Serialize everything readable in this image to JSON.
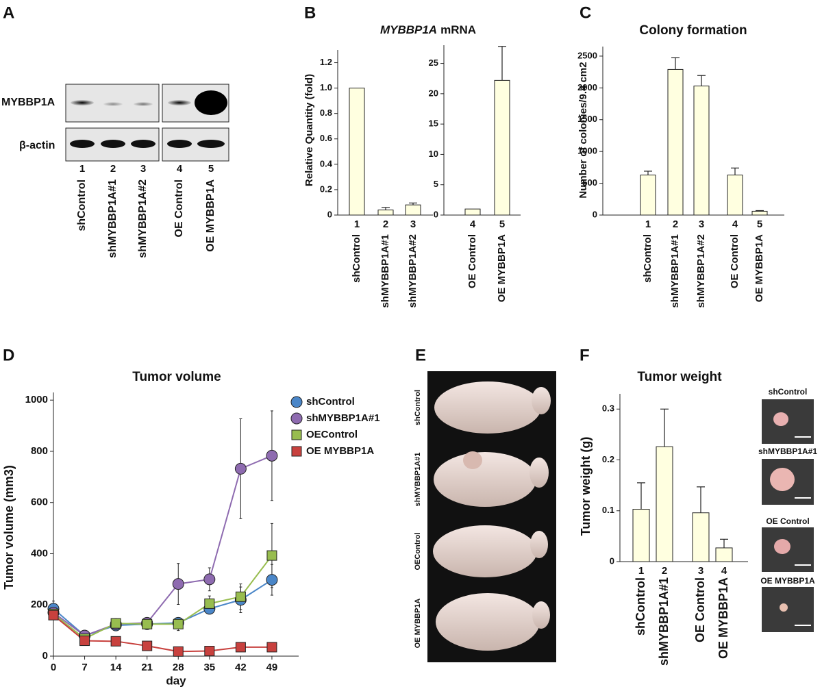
{
  "panel_labels": [
    "A",
    "B",
    "C",
    "D",
    "E",
    "F"
  ],
  "blot": {
    "rows": [
      "MYBBP1A",
      "β-actin"
    ],
    "lanes": [
      "1",
      "2",
      "3",
      "4",
      "5"
    ],
    "samples": [
      "shControl",
      "shMYBBP1A#1",
      "shMYBBP1A#2",
      "OE Control",
      "OE MYBBP1A"
    ]
  },
  "chart_data": [
    {
      "type": "bar",
      "title_italic": "MYBBP1A",
      "title": "mRNA",
      "y_label": "Relative Quantity (fold)",
      "categories": [
        "1",
        "2",
        "3"
      ],
      "sample_labels": [
        "shControl",
        "shMYBBP1A#1",
        "shMYBBP1A#2"
      ],
      "values": [
        1.0,
        0.04,
        0.08
      ],
      "errors": [
        0,
        0.02,
        0.015
      ],
      "color": "#ffffe0",
      "ylim": [
        0,
        1.3
      ],
      "yticks": [
        0,
        0.2,
        0.4,
        0.6,
        0.8,
        {
          "value": 1,
          "label": "1.0"
        },
        1.2
      ]
    },
    {
      "type": "bar",
      "categories": [
        "4",
        "5"
      ],
      "sample_labels": [
        "OE Control",
        "OE MYBBP1A"
      ],
      "values": [
        1,
        22.2
      ],
      "errors": [
        0,
        5.6
      ],
      "color": "#ffffe0",
      "ylim": [
        0,
        28
      ],
      "yticks": [
        0,
        5,
        10,
        15,
        20,
        25
      ]
    },
    {
      "type": "bar",
      "title": "Colony formation",
      "y_label": "Number of colonies/9.4 cm2",
      "categories": [
        "1",
        "2",
        "3",
        "4",
        "5"
      ],
      "sample_labels": [
        "shControl",
        "shMYBBP1A#1",
        "shMYBBP1A#2",
        "OE Control",
        "OE MYBBP1A"
      ],
      "values": [
        630,
        2290,
        2030,
        630,
        60
      ],
      "errors": [
        60,
        185,
        165,
        110,
        10
      ],
      "color": "#ffffe0",
      "ylim": [
        0,
        2650
      ],
      "yticks": [
        0,
        500,
        1000,
        1500,
        2000,
        2500
      ]
    },
    {
      "type": "line",
      "title": "Tumor volume",
      "x_label": "day",
      "y_label": "Tumor volume (mm3)",
      "x": [
        0,
        7,
        14,
        21,
        28,
        35,
        42,
        49
      ],
      "xlim": [
        0,
        55
      ],
      "xticks": [
        0,
        7,
        14,
        21,
        28,
        35,
        42,
        49
      ],
      "ylim": [
        0,
        1030
      ],
      "yticks": [
        0,
        200,
        400,
        600,
        800,
        1000
      ],
      "series": [
        {
          "name": "shControl",
          "color": "#4a86c8",
          "marker": "circle",
          "values": [
            185,
            80,
            120,
            125,
            130,
            185,
            220,
            298
          ],
          "errors": [
            30,
            10,
            15,
            15,
            20,
            20,
            50,
            60
          ]
        },
        {
          "name": "shMYBBP1A#1",
          "color": "#8e6bb0",
          "marker": "circle",
          "values": [
            170,
            80,
            125,
            130,
            282,
            300,
            732,
            783
          ],
          "errors": [
            25,
            10,
            15,
            15,
            80,
            45,
            195,
            175
          ]
        },
        {
          "name": "OEControl",
          "color": "#98bd4f",
          "marker": "square",
          "values": [
            165,
            68,
            128,
            125,
            125,
            205,
            232,
            393
          ],
          "errors": [
            20,
            10,
            15,
            20,
            25,
            30,
            50,
            125
          ]
        },
        {
          "name": "OE MYBBP1A",
          "color": "#c8413e",
          "marker": "square",
          "values": [
            160,
            60,
            58,
            40,
            18,
            20,
            35,
            35
          ],
          "errors": [
            15,
            5,
            5,
            5,
            5,
            5,
            10,
            10
          ]
        }
      ]
    },
    {
      "type": "bar",
      "title": "Tumor weight",
      "y_label": "Tumor weight (g)",
      "categories": [
        "1",
        "2",
        "3",
        "4"
      ],
      "sample_labels": [
        "shControl",
        "shMYBBP1A#1",
        "OE Control",
        "OE MYBBP1A"
      ],
      "values": [
        0.103,
        0.226,
        0.096,
        0.027
      ],
      "errors": [
        0.052,
        0.074,
        0.051,
        0.017
      ],
      "color": "#ffffe0",
      "ylim": [
        0,
        0.33
      ],
      "yticks": [
        0,
        0.1,
        0.2,
        0.3
      ]
    }
  ],
  "mouse_photos": [
    "shControl",
    "shMYBBP1A#1",
    "OEControl",
    "OE MYBBP1A"
  ],
  "tumor_photos": [
    "shControl",
    "shMYBBP1A#1",
    "OE Control",
    "OE MYBBP1A"
  ]
}
